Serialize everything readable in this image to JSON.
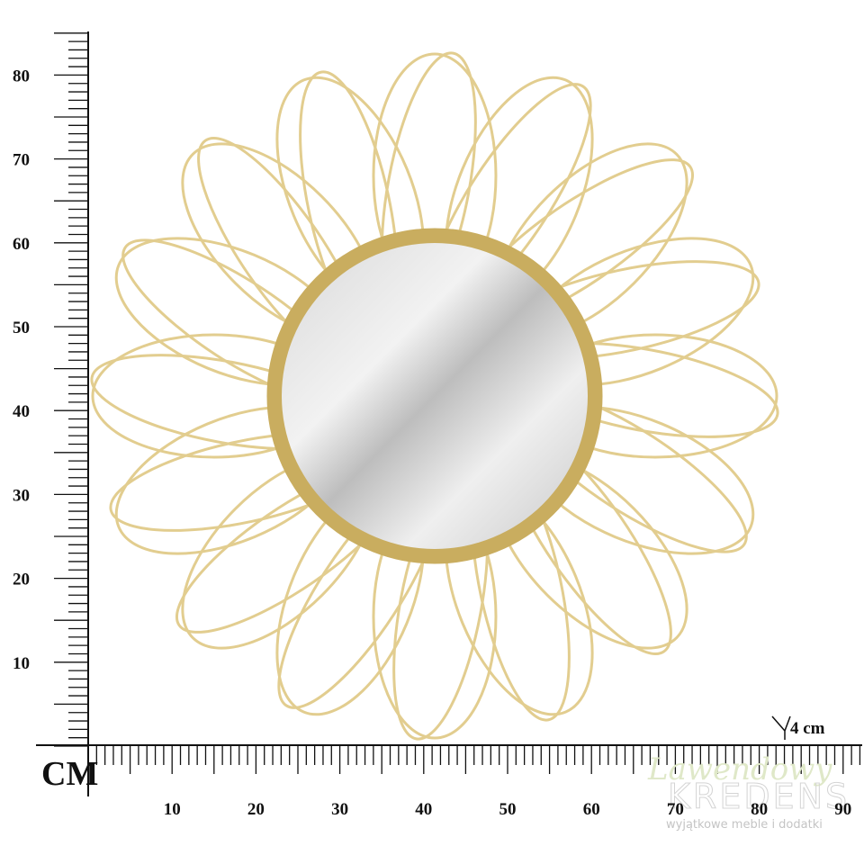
{
  "vertical_ruler": {
    "unit": "CM",
    "labels": [
      10,
      20,
      30,
      40,
      50,
      60,
      70,
      80
    ]
  },
  "horizontal_ruler": {
    "labels": [
      10,
      20,
      30,
      40,
      50,
      60,
      70,
      80,
      90
    ]
  },
  "thickness_note": "4 cm",
  "watermark": {
    "line1": "Lawendowy",
    "line2": "KREDENS",
    "tagline": "wyjątkowe meble i dodatki"
  }
}
